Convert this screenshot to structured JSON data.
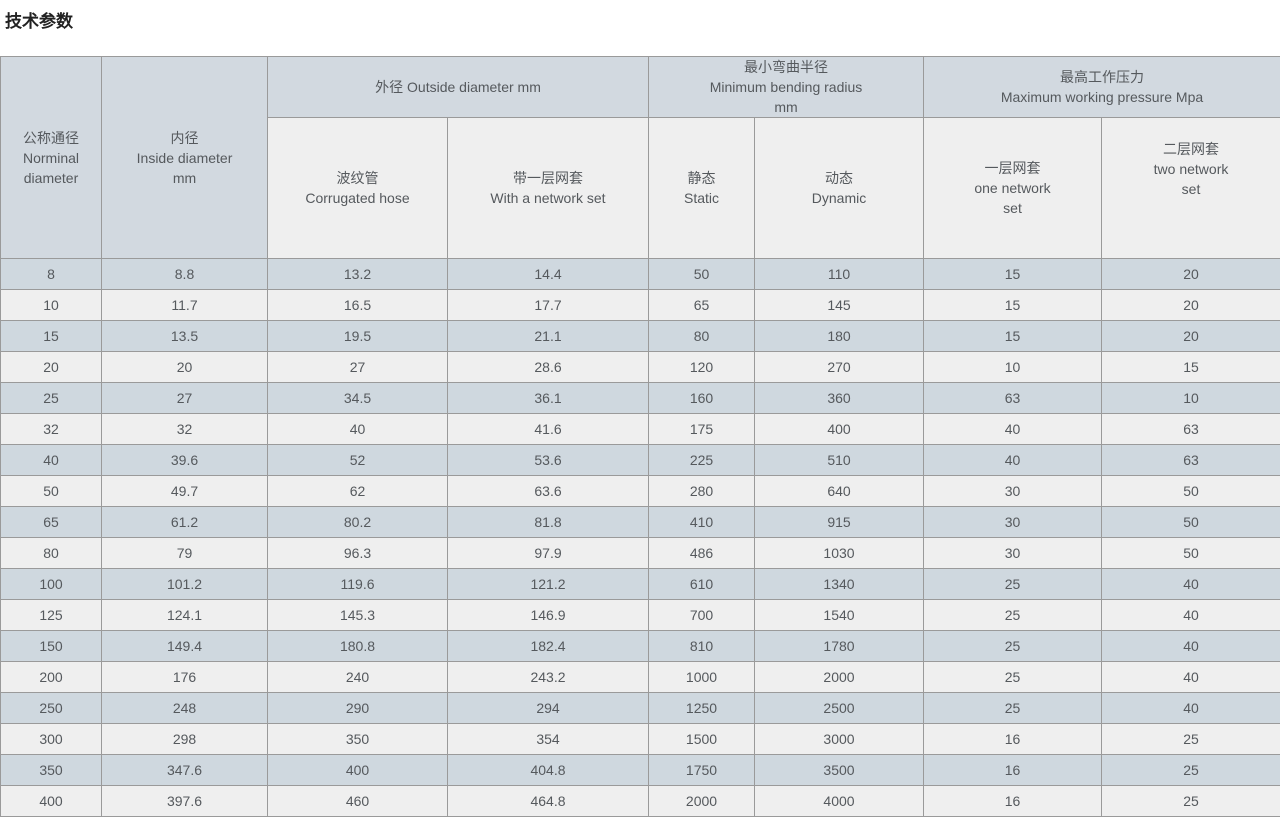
{
  "title": "技术参数",
  "table": {
    "group_headers": {
      "outside_diameter": "外径 Outside diameter mm",
      "bending_radius": "最小弯曲半径\nMinimum bending radius\nmm",
      "working_pressure": "最高工作压力\nMaximum working pressure Mpa"
    },
    "col_headers": {
      "nominal_diameter": "公称通径\nNorminal\ndiameter",
      "inside_diameter": "内径\nInside diameter\nmm",
      "corrugated_hose": "波纹管\nCorrugated hose",
      "with_network_set": "带一层网套\nWith a network set",
      "static": "静态\nStatic",
      "dynamic": "动态\nDynamic",
      "one_network_set": "一层网套\none network\nset",
      "two_network_set": "二层网套\ntwo network\nset"
    },
    "rows": [
      [
        "8",
        "8.8",
        "13.2",
        "14.4",
        "50",
        "110",
        "15",
        "20"
      ],
      [
        "10",
        "11.7",
        "16.5",
        "17.7",
        "65",
        "145",
        "15",
        "20"
      ],
      [
        "15",
        "13.5",
        "19.5",
        "21.1",
        "80",
        "180",
        "15",
        "20"
      ],
      [
        "20",
        "20",
        "27",
        "28.6",
        "120",
        "270",
        "10",
        "15"
      ],
      [
        "25",
        "27",
        "34.5",
        "36.1",
        "160",
        "360",
        "63",
        "10"
      ],
      [
        "32",
        "32",
        "40",
        "41.6",
        "175",
        "400",
        "40",
        "63"
      ],
      [
        "40",
        "39.6",
        "52",
        "53.6",
        "225",
        "510",
        "40",
        "63"
      ],
      [
        "50",
        "49.7",
        "62",
        "63.6",
        "280",
        "640",
        "30",
        "50"
      ],
      [
        "65",
        "61.2",
        "80.2",
        "81.8",
        "410",
        "915",
        "30",
        "50"
      ],
      [
        "80",
        "79",
        "96.3",
        "97.9",
        "486",
        "1030",
        "30",
        "50"
      ],
      [
        "100",
        "101.2",
        "119.6",
        "121.2",
        "610",
        "1340",
        "25",
        "40"
      ],
      [
        "125",
        "124.1",
        "145.3",
        "146.9",
        "700",
        "1540",
        "25",
        "40"
      ],
      [
        "150",
        "149.4",
        "180.8",
        "182.4",
        "810",
        "1780",
        "25",
        "40"
      ],
      [
        "200",
        "176",
        "240",
        "243.2",
        "1000",
        "2000",
        "25",
        "40"
      ],
      [
        "250",
        "248",
        "290",
        "294",
        "1250",
        "2500",
        "25",
        "40"
      ],
      [
        "300",
        "298",
        "350",
        "354",
        "1500",
        "3000",
        "16",
        "25"
      ],
      [
        "350",
        "347.6",
        "400",
        "404.8",
        "1750",
        "3500",
        "16",
        "25"
      ],
      [
        "400",
        "397.6",
        "460",
        "464.8",
        "2000",
        "4000",
        "16",
        "25"
      ]
    ]
  }
}
